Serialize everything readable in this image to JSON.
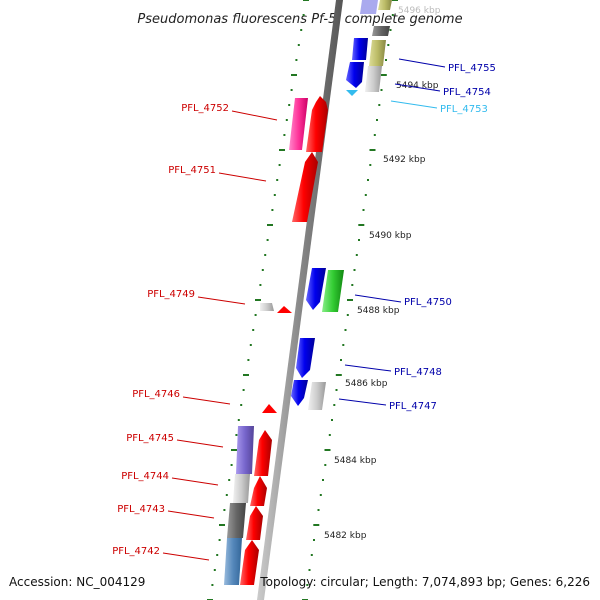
{
  "title": "Pseudomonas fluorescens Pf-5, complete genome",
  "footer": {
    "accession": "Accession: NC_004129",
    "info": "Topology: circular; Length: 7,074,893 bp; Genes: 6,226"
  },
  "kbp_labels": [
    "5496 kbp",
    "5494 kbp",
    "5492 kbp",
    "5490 kbp",
    "5488 kbp",
    "5486 kbp",
    "5484 kbp",
    "5482 kbp"
  ],
  "genes": {
    "left": [
      {
        "id": "PFL_4752",
        "color": "#cc0000"
      },
      {
        "id": "PFL_4751",
        "color": "#cc0000"
      },
      {
        "id": "PFL_4749",
        "color": "#cc0000"
      },
      {
        "id": "PFL_4746",
        "color": "#cc0000"
      },
      {
        "id": "PFL_4745",
        "color": "#cc0000"
      },
      {
        "id": "PFL_4744",
        "color": "#cc0000"
      },
      {
        "id": "PFL_4743",
        "color": "#cc0000"
      },
      {
        "id": "PFL_4742",
        "color": "#cc0000"
      }
    ],
    "right": [
      {
        "id": "PFL_4755",
        "color": "#0000aa"
      },
      {
        "id": "PFL_4754",
        "color": "#0000aa"
      },
      {
        "id": "PFL_4753",
        "color": "#33bbee"
      },
      {
        "id": "PFL_4750",
        "color": "#0000aa"
      },
      {
        "id": "PFL_4748",
        "color": "#0000aa"
      },
      {
        "id": "PFL_4747",
        "color": "#0000aa"
      }
    ]
  },
  "colors": {
    "forward_strand": "#ee0000",
    "reverse_strand": "#0000dd",
    "tick": "#227722",
    "backbone": "#888888"
  }
}
